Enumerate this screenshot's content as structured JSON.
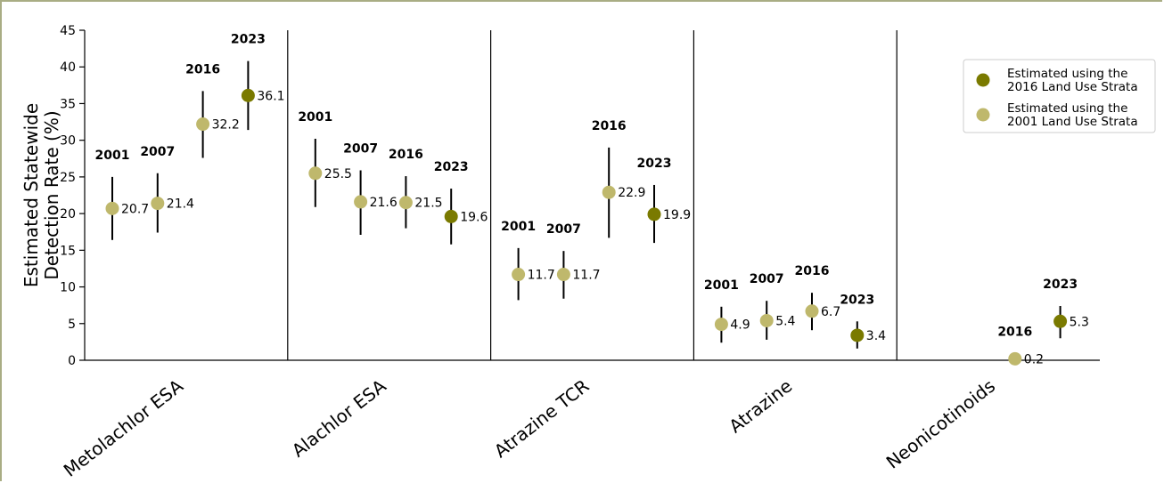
{
  "chart_data": {
    "type": "scatter",
    "ylabel_lines": [
      "Estimated Statewide",
      "Detection Rate (%)"
    ],
    "ylim": [
      0,
      45
    ],
    "yticks": [
      0,
      5,
      10,
      15,
      20,
      25,
      30,
      35,
      40,
      45
    ],
    "grid": false,
    "legend_position": "top-right",
    "legend": [
      {
        "key": "s2016",
        "lines": [
          "Estimated using the",
          "2016 Land Use Strata"
        ],
        "color": "#7a7a00"
      },
      {
        "key": "s2001",
        "lines": [
          "Estimated using the",
          "2001 Land Use Strata"
        ],
        "color": "#bfb86c"
      }
    ],
    "groups": [
      {
        "name": "Metolachlor ESA",
        "points": [
          {
            "year": "2001",
            "value": 20.7,
            "label": "20.7",
            "low": 16.4,
            "high": 25.0,
            "strata": "s2001"
          },
          {
            "year": "2007",
            "value": 21.4,
            "label": "21.4",
            "low": 17.4,
            "high": 25.5,
            "strata": "s2001"
          },
          {
            "year": "2016",
            "value": 32.2,
            "label": "32.2",
            "low": 27.6,
            "high": 36.7,
            "strata": "s2001"
          },
          {
            "year": "2023",
            "value": 36.1,
            "label": "36.1",
            "low": 31.4,
            "high": 40.8,
            "strata": "s2016"
          }
        ]
      },
      {
        "name": "Alachlor ESA",
        "points": [
          {
            "year": "2001",
            "value": 25.5,
            "label": "25.5",
            "low": 20.9,
            "high": 30.2,
            "strata": "s2001"
          },
          {
            "year": "2007",
            "value": 21.6,
            "label": "21.6",
            "low": 17.1,
            "high": 25.9,
            "strata": "s2001"
          },
          {
            "year": "2016",
            "value": 21.5,
            "label": "21.5",
            "low": 18.0,
            "high": 25.1,
            "strata": "s2001"
          },
          {
            "year": "2023",
            "value": 19.6,
            "label": "19.6",
            "low": 15.8,
            "high": 23.4,
            "strata": "s2016"
          }
        ]
      },
      {
        "name": "Atrazine TCR",
        "points": [
          {
            "year": "2001",
            "value": 11.7,
            "label": "11.7",
            "low": 8.2,
            "high": 15.3,
            "strata": "s2001"
          },
          {
            "year": "2007",
            "value": 11.7,
            "label": "11.7",
            "low": 8.4,
            "high": 14.9,
            "strata": "s2001"
          },
          {
            "year": "2016",
            "value": 22.9,
            "label": "22.9",
            "low": 16.7,
            "high": 29.0,
            "strata": "s2001"
          },
          {
            "year": "2023",
            "value": 19.9,
            "label": "19.9",
            "low": 16.0,
            "high": 23.9,
            "strata": "s2016"
          }
        ]
      },
      {
        "name": "Atrazine",
        "points": [
          {
            "year": "2001",
            "value": 4.9,
            "label": "4.9",
            "low": 2.4,
            "high": 7.3,
            "strata": "s2001"
          },
          {
            "year": "2007",
            "value": 5.4,
            "label": "5.4",
            "low": 2.8,
            "high": 8.1,
            "strata": "s2001"
          },
          {
            "year": "2016",
            "value": 6.7,
            "label": "6.7",
            "low": 4.1,
            "high": 9.2,
            "strata": "s2001"
          },
          {
            "year": "2023",
            "value": 3.4,
            "label": "3.4",
            "low": 1.6,
            "high": 5.3,
            "strata": "s2016"
          }
        ]
      },
      {
        "name": "Neonicotinoids",
        "points": [
          {
            "year": "2016",
            "value": 0.2,
            "label": "0.2",
            "low": 0.2,
            "high": 0.2,
            "strata": "s2001"
          },
          {
            "year": "2023",
            "value": 5.3,
            "label": "5.3",
            "low": 3.0,
            "high": 7.4,
            "strata": "s2016"
          }
        ]
      }
    ]
  }
}
